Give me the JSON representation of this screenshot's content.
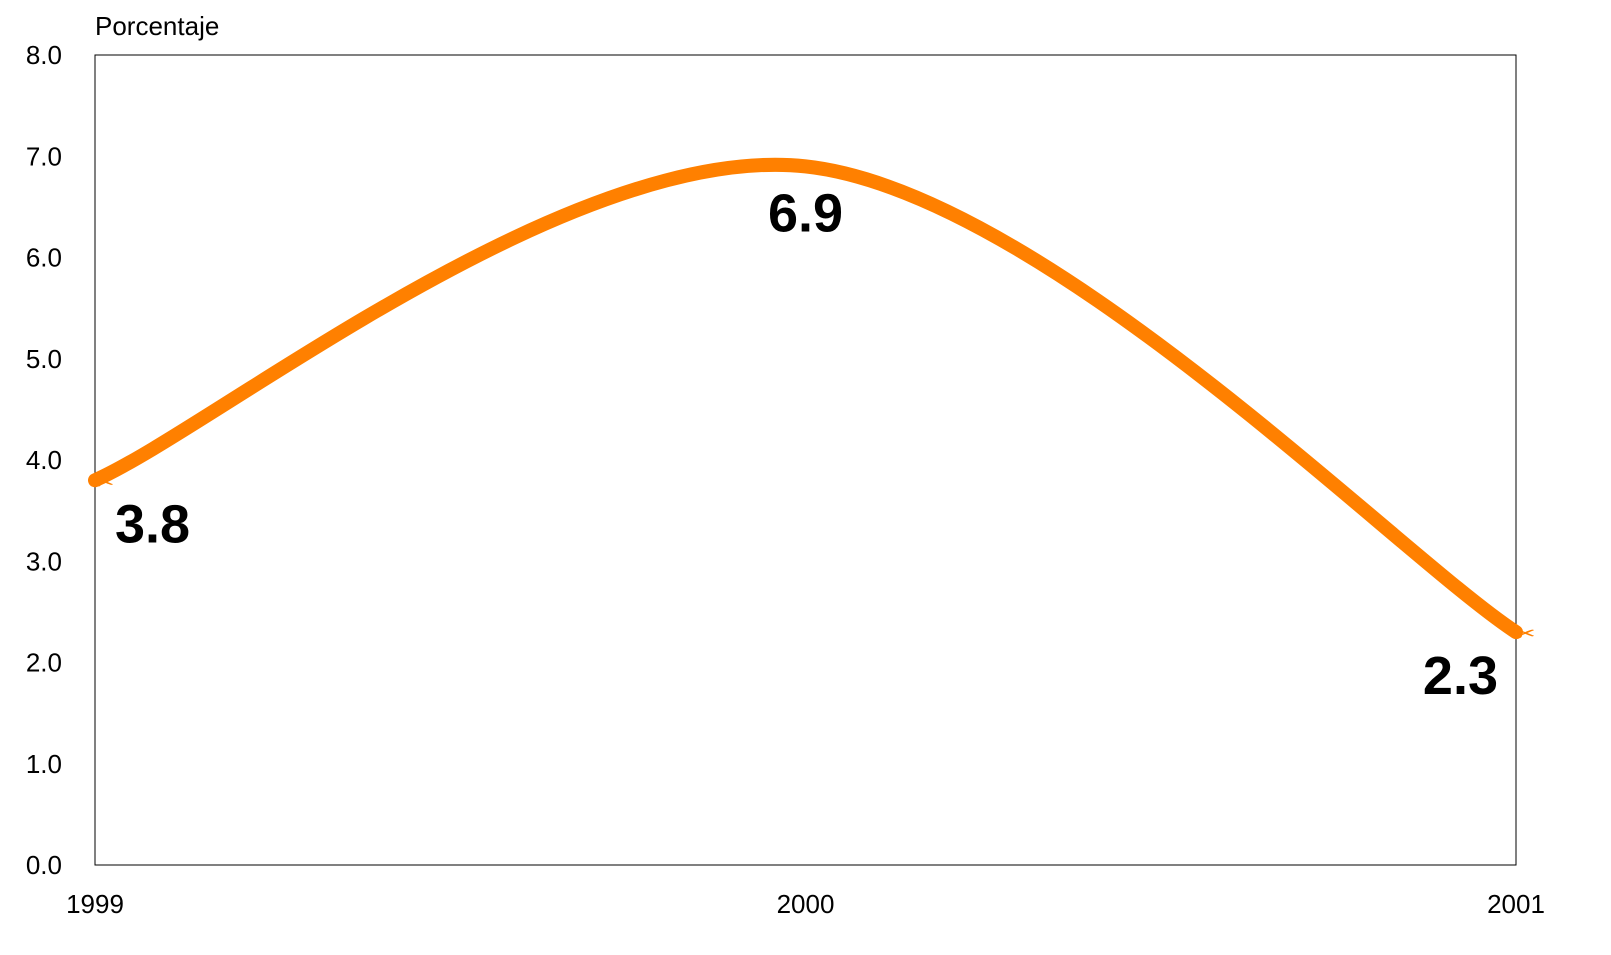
{
  "chart_data": {
    "type": "line",
    "title": "",
    "ylabel": "Porcentaje",
    "xlabel": "",
    "x": [
      "1999",
      "2000",
      "2001"
    ],
    "series": [
      {
        "values": [
          3.8,
          6.9,
          2.3
        ],
        "color": "#FF8000",
        "smooth": true,
        "marker": "scissors"
      }
    ],
    "data_labels": [
      "3.8",
      "6.9",
      "2.3"
    ],
    "ylim": [
      0,
      8
    ],
    "ytick_labels": [
      "0.0",
      "1.0",
      "2.0",
      "3.0",
      "4.0",
      "5.0",
      "6.0",
      "7.0",
      "8.0"
    ],
    "xtick_labels": [
      "1999",
      "2000",
      "2001"
    ],
    "grid": false,
    "legend": "none"
  }
}
